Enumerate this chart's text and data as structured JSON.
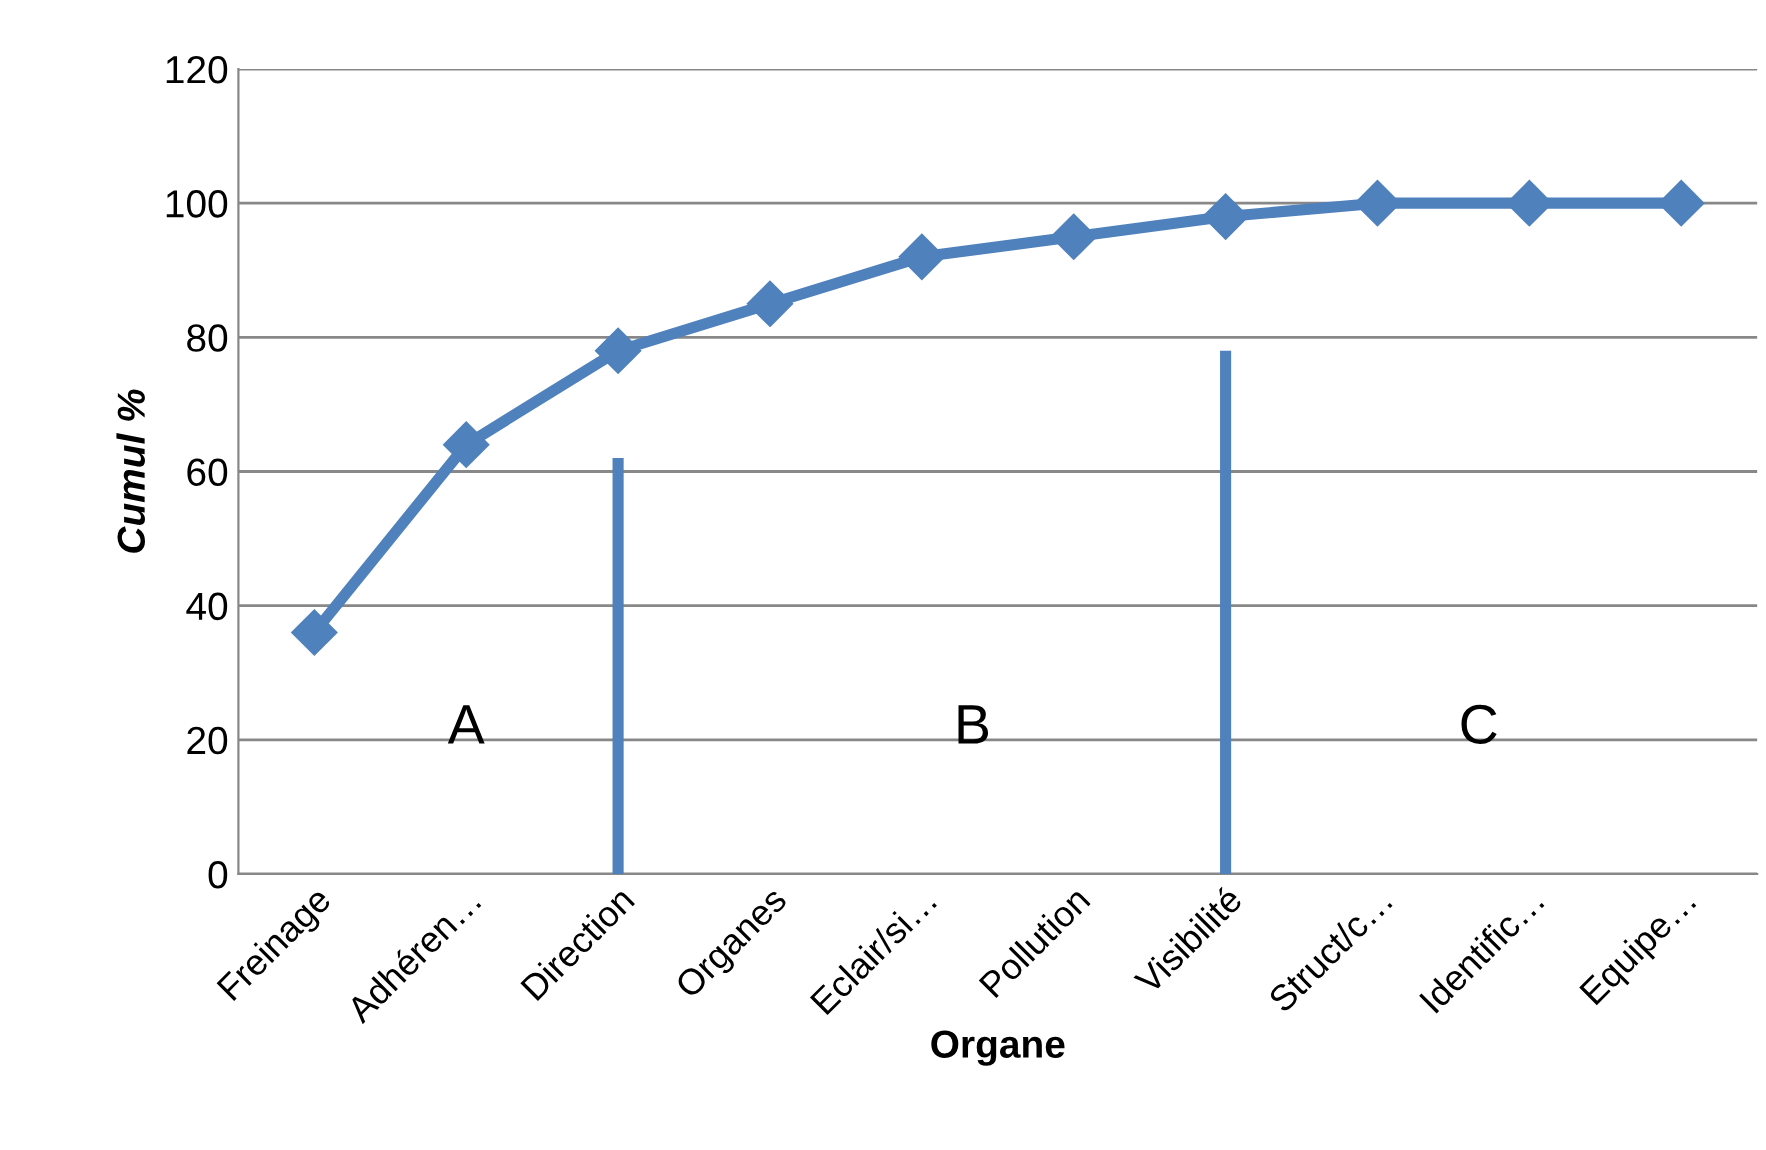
{
  "chart_data": {
    "type": "line",
    "xlabel": "Organe",
    "ylabel": "Cumul %",
    "categories": [
      "Freinage",
      "Adhéren…",
      "Direction",
      "Organes",
      "Eclair/si…",
      "Pollution",
      "Visibilité",
      "Struct/c…",
      "Identific…",
      "Equipe…"
    ],
    "series": [
      {
        "color": "#4f81bd",
        "values": [
          36,
          64,
          78,
          85,
          92,
          95,
          98,
          100,
          100,
          100
        ],
        "marker": "diamond"
      },
      {
        "type": "line",
        "color": "#4f81bd",
        "x": [
          "Direction",
          "Direction"
        ],
        "values": [
          0,
          62
        ],
        "marker": "none"
      },
      {
        "type": "line",
        "color": "#4f81bd",
        "x": [
          "Visibilité",
          "Visibilité"
        ],
        "values": [
          0,
          78
        ],
        "marker": "none"
      }
    ],
    "ylim": [
      0,
      120
    ],
    "yticks": [
      0,
      20,
      40,
      60,
      80,
      100,
      120
    ],
    "grid": "y",
    "legend": false,
    "annotations": [
      "A",
      "B",
      "C"
    ]
  }
}
